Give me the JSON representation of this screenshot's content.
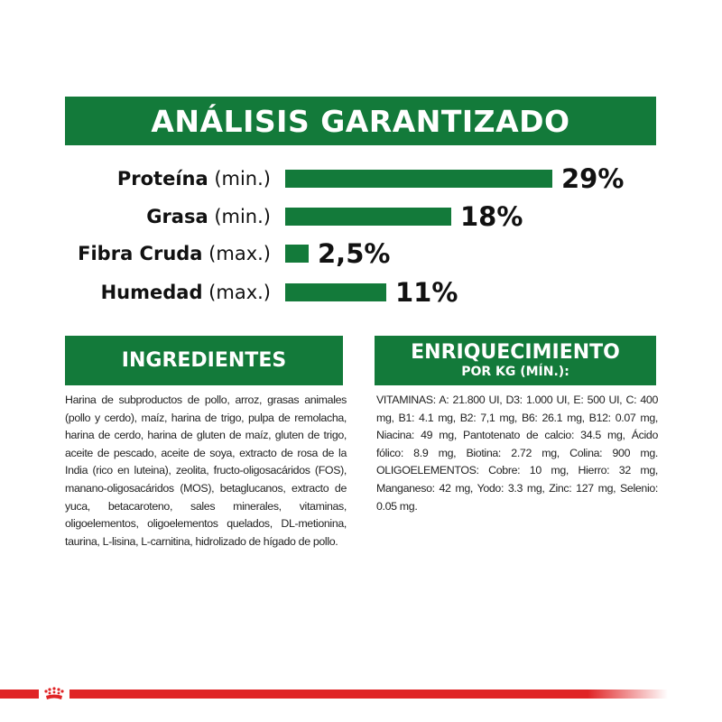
{
  "title": "ANÁLISIS GARANTIZADO",
  "analysis": [
    {
      "name": "Proteína",
      "qualifier": "(min.)",
      "value": 29,
      "display": "29%"
    },
    {
      "name": "Grasa",
      "qualifier": "(min.)",
      "value": 18,
      "display": "18%"
    },
    {
      "name": "Fibra Cruda",
      "qualifier": "(max.)",
      "value": 2.5,
      "display": "2,5%"
    },
    {
      "name": "Humedad",
      "qualifier": "(max.)",
      "value": 11,
      "display": "11%"
    }
  ],
  "ingredients": {
    "heading": "INGREDIENTES",
    "text": "Harina de subproductos de pollo, arroz, grasas animales (pollo y cerdo), maíz, harina de trigo, pulpa de remolacha, harina de cerdo, harina de gluten de maíz, gluten de trigo, aceite de pescado, aceite de soya, extracto de rosa de la India (rico en luteina), zeolita, fructo-oligosacáridos (FOS), manano-oligosacáridos (MOS), betaglucanos, extracto de yuca, betacaroteno, sales minerales, vitaminas, oligoelementos, oligoelementos quelados, DL-metionina, taurina, L-lisina, L-carnitina, hidrolizado de hígado de pollo."
  },
  "enrichment": {
    "heading": "ENRIQUECIMIENTO",
    "subheading": "POR KG (MÍN.):",
    "vitamins": "VITAMINAS: A: 21.800 UI, D3: 1.000 UI, E: 500 UI, C: 400 mg, B1: 4.1 mg, B2: 7,1 mg, B6: 26.1 mg, B12: 0.07 mg, Niacina: 49 mg, Pantotenato de calcio: 34.5 mg, Ácido fólico: 8.9 mg, Biotina: 2.72 mg, Colina: 900 mg.",
    "trace": "OLIGOELEMENTOS: Cobre: 10 mg, Hierro: 32 mg, Manganeso: 42 mg, Yodo: 3.3 mg, Zinc: 127 mg, Selenio: 0.05 mg."
  },
  "colors": {
    "green": "#137a3a",
    "red": "#e02426"
  },
  "icons": {
    "brand": "crown-icon"
  }
}
